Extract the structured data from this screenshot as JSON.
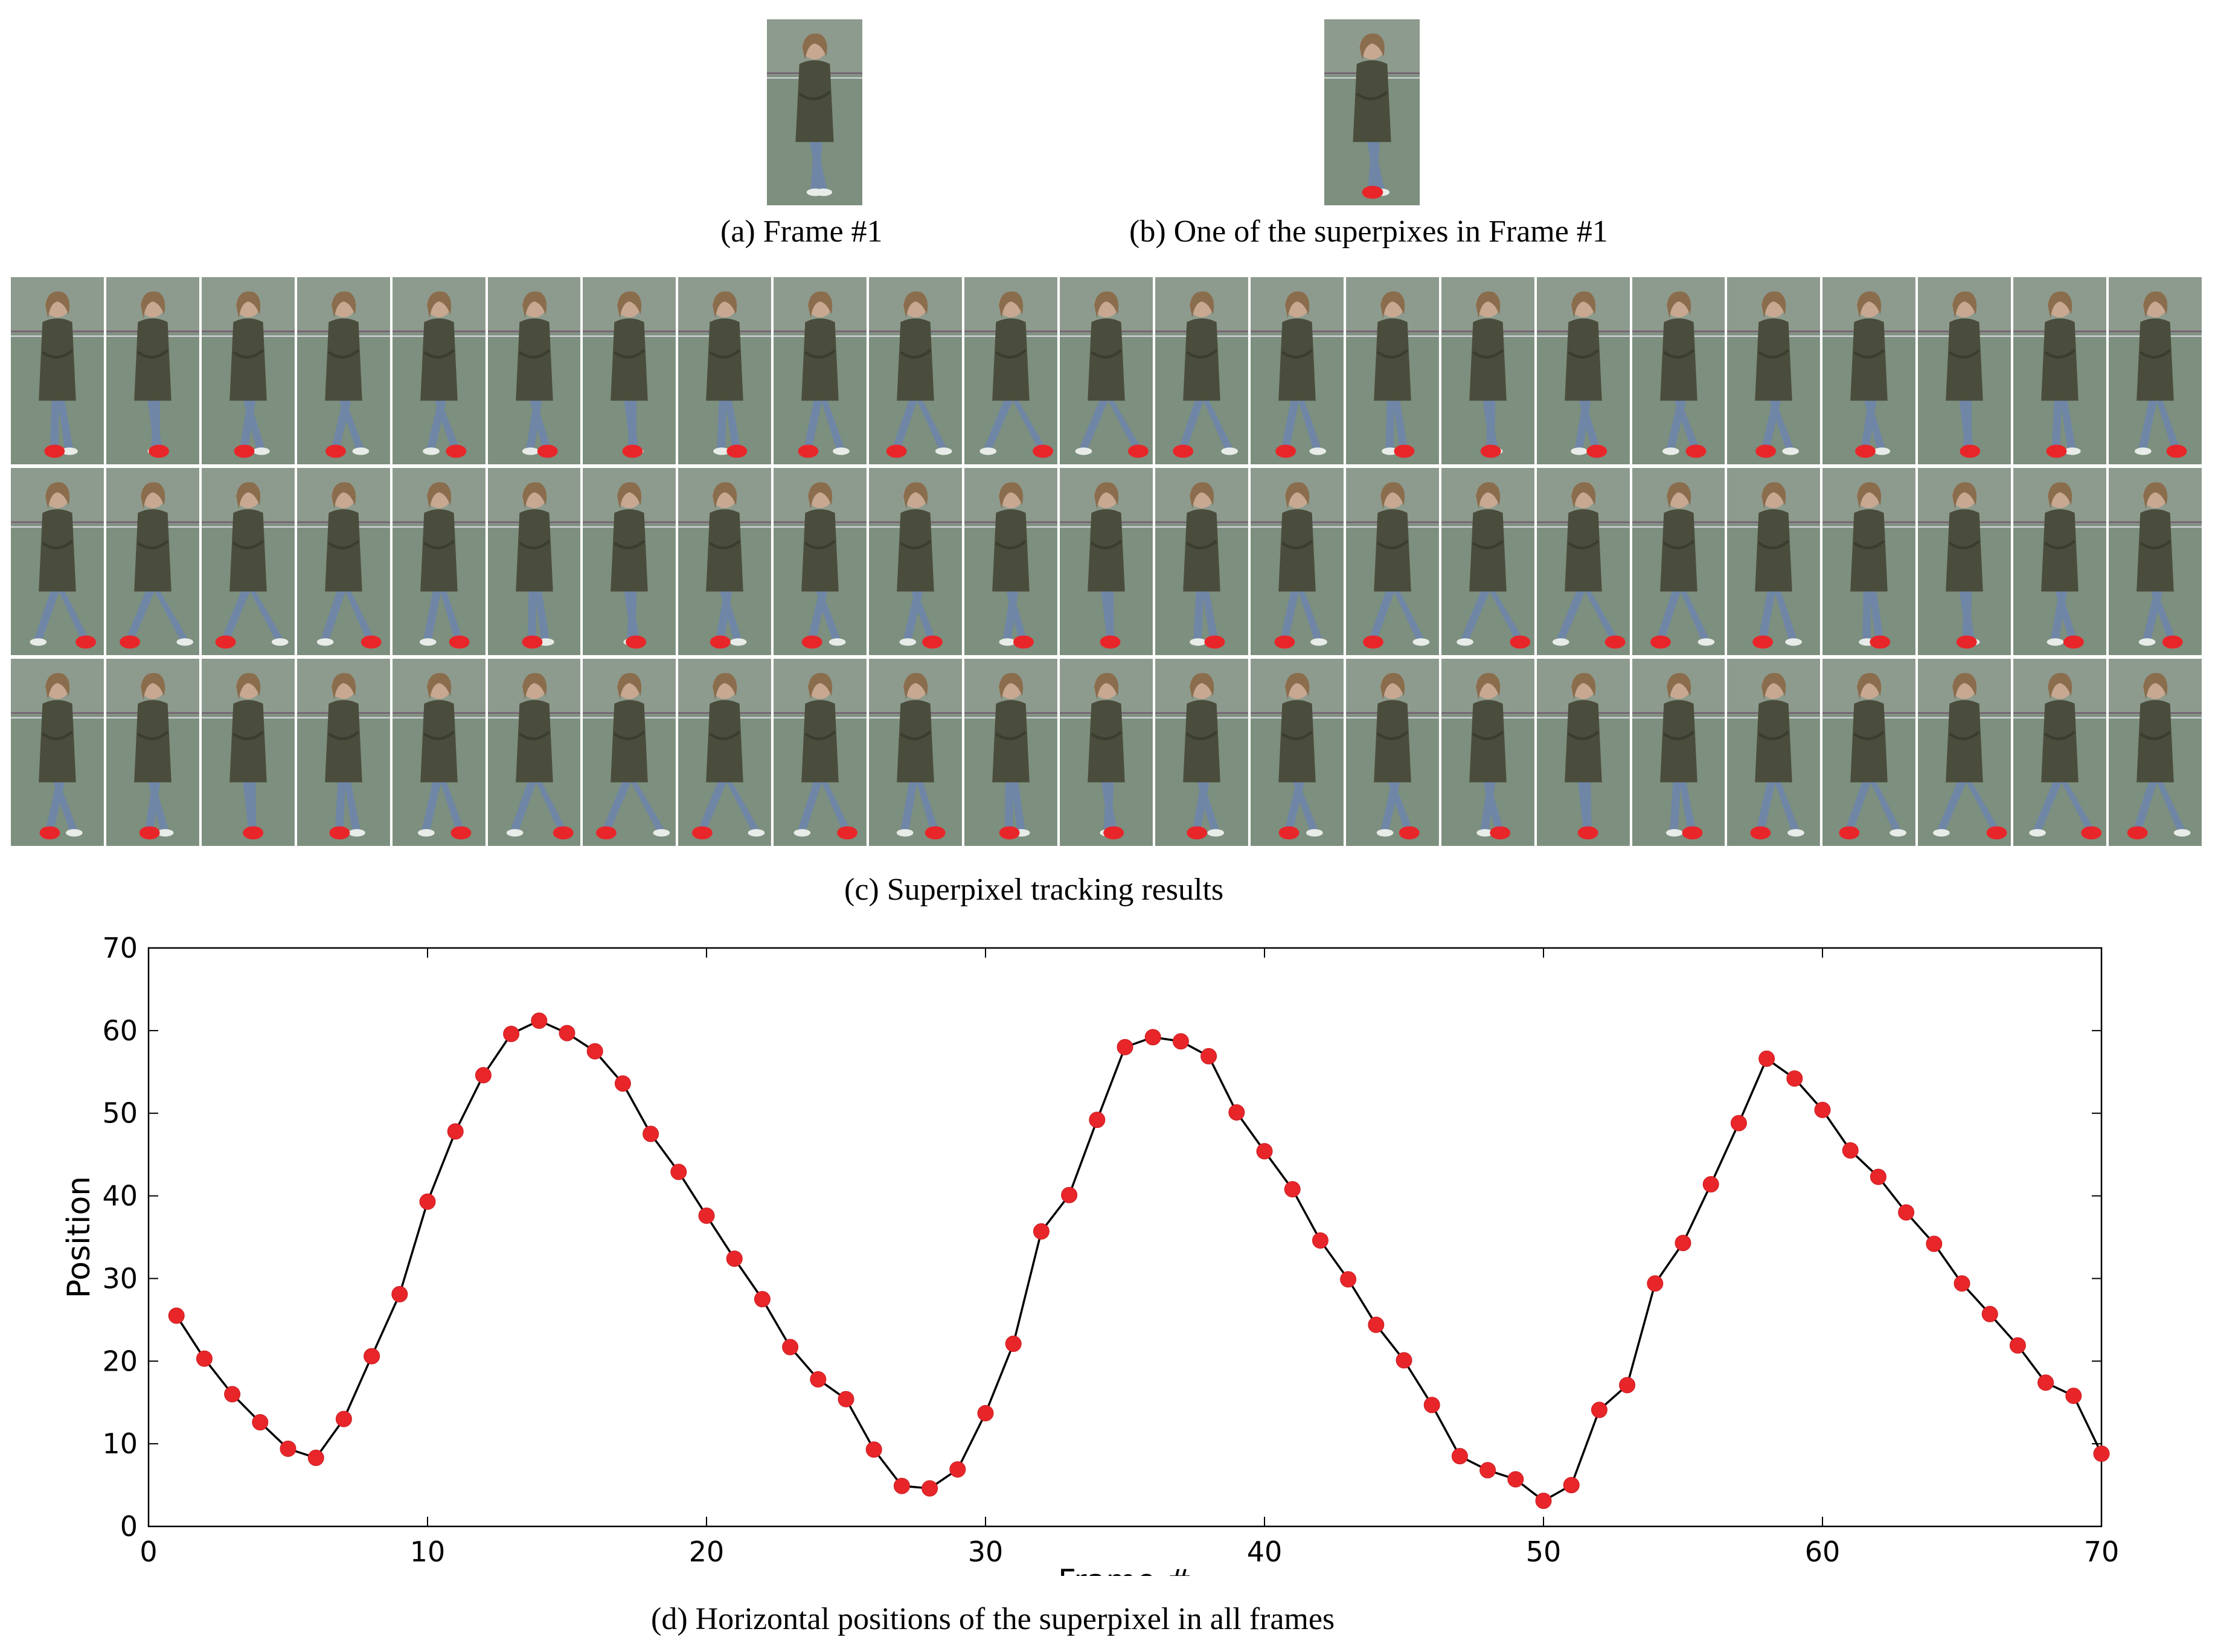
{
  "captions": {
    "a": "(a) Frame #1",
    "b": "(b) One of the superpixes  in Frame #1",
    "c": "(c) Superpixel tracking results",
    "d": "(d) Horizontal positions of the superpixel in all frames"
  },
  "tracking_grid": {
    "rows": 3,
    "frames_per_row": 23,
    "marker_color": "#e8262a",
    "background_color": "#7d8f7e",
    "coat_color": "#4b4d3c",
    "jeans_color": "#6f86a6"
  },
  "chart_data": {
    "type": "line",
    "xlabel": "Frame #",
    "ylabel": "Position",
    "xlim": [
      0,
      70
    ],
    "ylim": [
      0,
      70
    ],
    "xticks": [
      0,
      10,
      20,
      30,
      40,
      50,
      60,
      70
    ],
    "yticks": [
      0,
      10,
      20,
      30,
      40,
      50,
      60,
      70
    ],
    "grid": false,
    "line_color": "#000000",
    "marker_color": "#e8262a",
    "series": [
      {
        "x": [
          1,
          2,
          3,
          4,
          5,
          6,
          7,
          8,
          9,
          10,
          11,
          12,
          13,
          14,
          15,
          16,
          17,
          18,
          19,
          20,
          21,
          22,
          23,
          24,
          25,
          26,
          27,
          28,
          29,
          30,
          31,
          32,
          33,
          34,
          35,
          36,
          37,
          38,
          39,
          40,
          41,
          42,
          43,
          44,
          45,
          46,
          47,
          48,
          49,
          50,
          51,
          52,
          53,
          54,
          55,
          56,
          57,
          58,
          59,
          60,
          61,
          62,
          63,
          64,
          65,
          66,
          67,
          68,
          69,
          70
        ],
        "y": [
          25.5,
          20.3,
          16.0,
          12.6,
          9.4,
          8.3,
          13.0,
          20.6,
          28.1,
          39.3,
          47.8,
          54.6,
          59.6,
          61.2,
          59.7,
          57.5,
          53.6,
          47.5,
          42.9,
          37.6,
          32.4,
          27.5,
          21.7,
          17.8,
          15.4,
          9.3,
          4.9,
          4.6,
          6.9,
          13.7,
          22.1,
          35.7,
          40.1,
          49.2,
          58.0,
          59.2,
          58.7,
          56.9,
          50.1,
          45.4,
          40.8,
          34.6,
          29.9,
          24.4,
          20.1,
          14.7,
          8.5,
          6.8,
          5.7,
          3.1,
          5.0,
          14.1,
          17.1,
          29.4,
          34.3,
          41.4,
          48.8,
          56.6,
          54.2,
          50.4,
          45.5,
          42.3,
          38.0,
          34.2,
          29.4,
          25.7,
          21.9,
          17.4,
          15.8,
          8.8
        ]
      }
    ]
  }
}
